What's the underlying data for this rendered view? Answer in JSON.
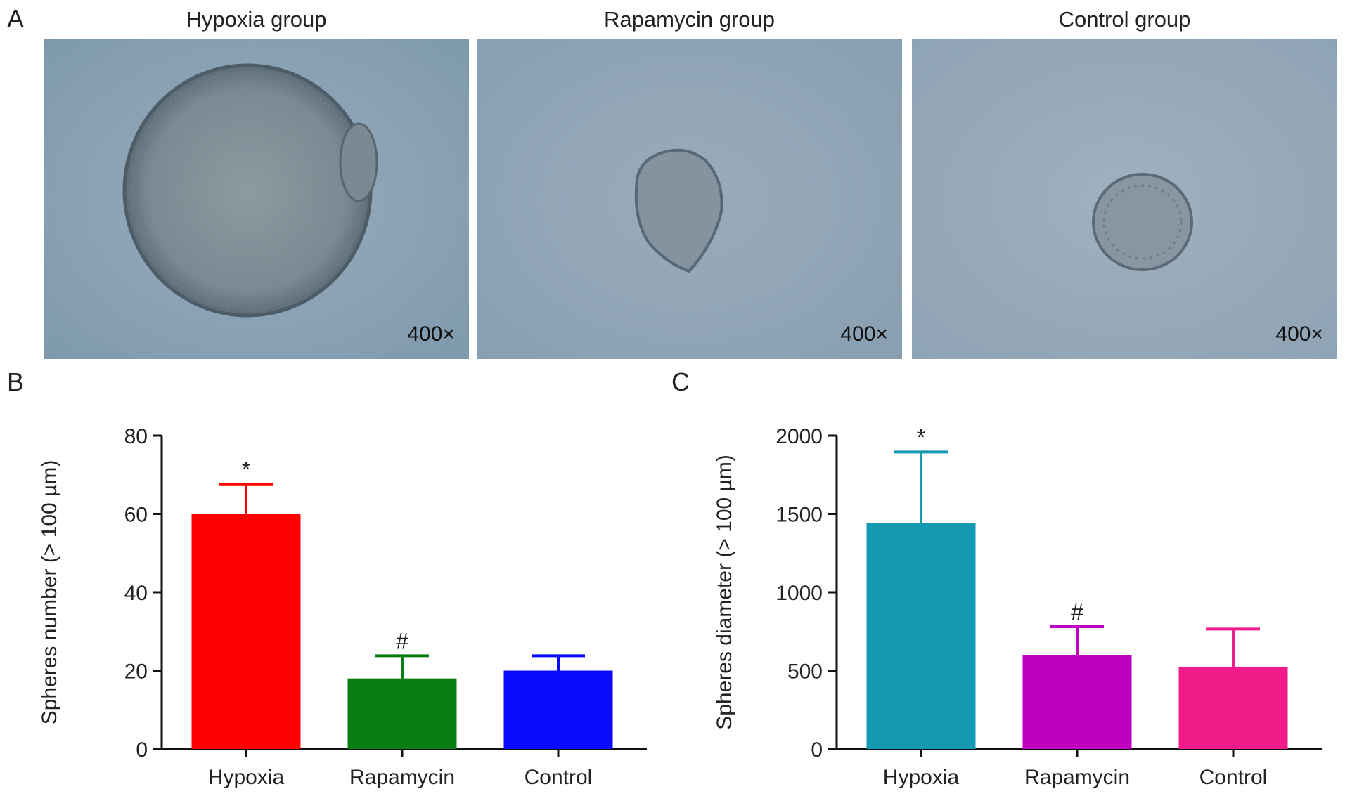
{
  "panels": {
    "a": "A",
    "b": "B",
    "c": "C"
  },
  "photos": [
    {
      "title": "Hypoxia group",
      "magnification": "400×"
    },
    {
      "title": "Rapamycin group",
      "magnification": "400×"
    },
    {
      "title": "Control group",
      "magnification": "400×"
    }
  ],
  "chart_data": [
    {
      "type": "bar",
      "panel": "B",
      "categories": [
        "Hypoxia",
        "Rapamycin",
        "Control"
      ],
      "values": [
        60,
        18,
        20
      ],
      "errors": [
        7.5,
        5.8,
        3.8
      ],
      "annotations": [
        "*",
        "#",
        ""
      ],
      "colors": [
        "#ff0000",
        "#0a7d12",
        "#0a0aff"
      ],
      "ylabel": "Spheres number (> 100 µm)",
      "ylim": [
        0,
        80
      ],
      "yticks": [
        0,
        20,
        40,
        60,
        80
      ]
    },
    {
      "type": "bar",
      "panel": "C",
      "categories": [
        "Hypoxia",
        "Rapamycin",
        "Control"
      ],
      "values": [
        1440,
        600,
        525
      ],
      "errors": [
        455,
        180,
        240
      ],
      "annotations": [
        "*",
        "#",
        ""
      ],
      "colors": [
        "#1499b3",
        "#c000c0",
        "#f21b8a"
      ],
      "ylabel": "Spheres diameter (> 100 µm)",
      "ylim": [
        0,
        2000
      ],
      "yticks": [
        0,
        500,
        1000,
        1500,
        2000
      ]
    }
  ]
}
